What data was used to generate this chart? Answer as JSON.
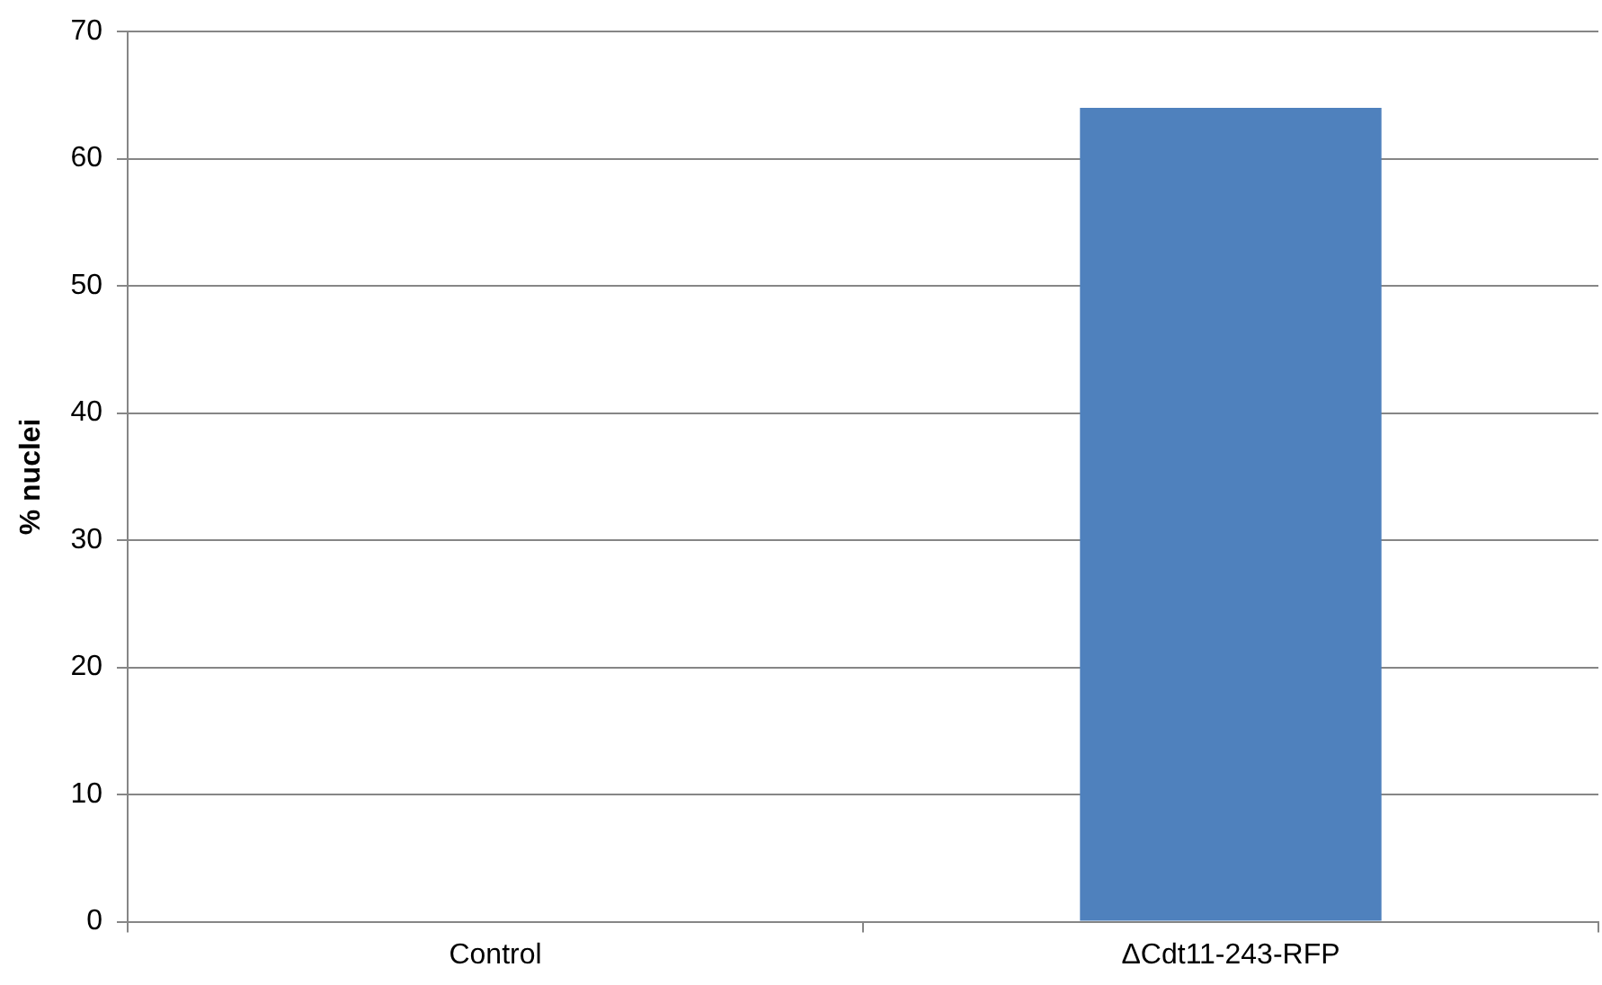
{
  "chart_data": {
    "type": "bar",
    "ylabel": "% nuclei",
    "categories": [
      "Control",
      "ΔCdt11-243-RFP"
    ],
    "values": [
      0,
      64
    ],
    "color": "#4f81bd",
    "ylim": [
      0,
      70
    ],
    "yticks": [
      0,
      10,
      20,
      30,
      40,
      50,
      60,
      70
    ],
    "grid": "y",
    "legend": false
  }
}
